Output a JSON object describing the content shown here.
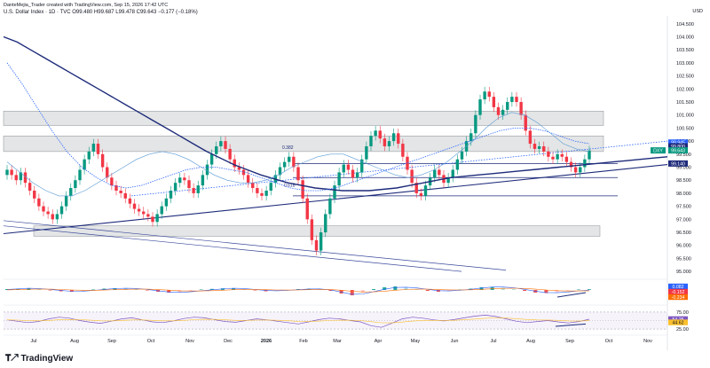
{
  "header": {
    "line1": "DanteMejia_Trader created with TradingView.com, Sep 15, 2026 17:42 UTC",
    "line2": "U.S. Dollar Index · 1D · TVC  O99.480  H99.687  L99.478  C99.643  −0.177 (−0.18%)"
  },
  "chart_data": {
    "type": "line",
    "series_kind": "candlestick",
    "symbol_label": "DXY",
    "y_axis": {
      "ticks": [
        "104.500",
        "104.000",
        "103.500",
        "103.000",
        "102.500",
        "102.000",
        "101.500",
        "101.000",
        "100.500",
        "100.000",
        "99.500",
        "99.000",
        "98.500",
        "98.000",
        "97.500",
        "97.000",
        "96.500",
        "96.000",
        "95.500",
        "95.000"
      ],
      "range": [
        94.8,
        104.8
      ]
    },
    "x_axis": {
      "ticks": [
        "Jul",
        "Aug",
        "Sep",
        "Oct",
        "Nov",
        "Dec",
        "2026",
        "Feb",
        "Mar",
        "Apr",
        "May",
        "Jun",
        "Jul",
        "Aug",
        "Sep",
        "Oct",
        "Nov"
      ]
    },
    "price_labels": [
      {
        "text": "99.945",
        "color": "#2962ff"
      },
      {
        "text": "99.800",
        "color": "#1e2b7a"
      },
      {
        "text": "99.643",
        "color": "#089981"
      },
      {
        "text": "99.140",
        "color": "#1e2b7a"
      }
    ],
    "fib_labels": [
      "0.382",
      "0.618"
    ],
    "zones": [
      {
        "from": 100.6,
        "to": 101.15
      },
      {
        "from": 99.6,
        "to": 100.2
      },
      {
        "from": 96.35,
        "to": 96.75
      }
    ],
    "closes": [
      98.9,
      98.7,
      98.5,
      98.8,
      98.4,
      98.1,
      97.8,
      97.5,
      97.3,
      97.2,
      97.0,
      97.2,
      97.5,
      97.9,
      98.2,
      98.5,
      98.9,
      99.3,
      99.6,
      99.9,
      99.5,
      99.0,
      98.6,
      98.3,
      98.1,
      98.0,
      97.8,
      97.6,
      97.4,
      97.3,
      97.2,
      97.1,
      96.9,
      97.2,
      97.5,
      97.8,
      98.1,
      98.4,
      98.6,
      98.5,
      98.2,
      98.0,
      98.3,
      98.7,
      99.1,
      99.5,
      99.8,
      100.0,
      99.7,
      99.3,
      99.0,
      98.9,
      98.7,
      98.4,
      98.2,
      98.0,
      97.9,
      98.1,
      98.4,
      98.7,
      99.0,
      99.2,
      99.4,
      99.0,
      98.5,
      97.8,
      97.0,
      96.2,
      95.8,
      96.5,
      97.2,
      97.8,
      98.3,
      98.8,
      99.1,
      98.9,
      98.6,
      98.8,
      99.3,
      99.8,
      100.2,
      100.4,
      100.1,
      99.8,
      100.0,
      100.3,
      99.9,
      99.4,
      98.9,
      98.4,
      98.0,
      97.9,
      98.3,
      98.6,
      98.9,
      98.7,
      98.4,
      98.6,
      98.9,
      99.3,
      99.6,
      100.0,
      100.3,
      101.0,
      101.6,
      101.9,
      101.7,
      101.3,
      101.0,
      101.2,
      101.5,
      101.7,
      101.5,
      101.0,
      100.4,
      99.9,
      99.7,
      99.8,
      99.6,
      99.4,
      99.3,
      99.5,
      99.4,
      99.2,
      99.0,
      98.8,
      99.0,
      99.3,
      99.643
    ],
    "ema_long": [
      104.0,
      103.8,
      103.5,
      103.2,
      102.9,
      102.6,
      102.3,
      102.0,
      101.7,
      101.4,
      101.1,
      100.8,
      100.5,
      100.2,
      99.9,
      99.6,
      99.35,
      99.1,
      98.9,
      98.7,
      98.55,
      98.4,
      98.3,
      98.2,
      98.15,
      98.1,
      98.1,
      98.1,
      98.15,
      98.2,
      98.3,
      98.4,
      98.5,
      98.6,
      98.65,
      98.7,
      98.75,
      98.8,
      98.85,
      98.9,
      98.95,
      99.0,
      99.05,
      99.1,
      99.15,
      99.2,
      99.25,
      99.3,
      99.35,
      99.4
    ],
    "sma_mid": [
      103.0,
      102.2,
      101.3,
      100.4,
      99.6,
      99.0,
      98.6,
      98.3,
      98.2,
      98.3,
      98.5,
      98.7,
      98.9,
      99.0,
      99.0,
      98.9,
      98.8,
      98.6,
      98.4,
      98.2,
      98.1,
      98.1,
      98.2,
      98.4,
      98.6,
      98.8,
      99.0,
      99.2,
      99.4,
      99.6,
      99.8,
      100.0,
      100.2,
      100.4,
      100.5,
      100.5,
      100.4,
      100.2,
      100.0,
      99.9
    ],
    "sma_fast": [
      99.2,
      98.8,
      98.4,
      98.1,
      97.9,
      97.9,
      98.1,
      98.4,
      98.7,
      99.0,
      99.3,
      99.5,
      99.6,
      99.5,
      99.3,
      99.0,
      98.7,
      98.5,
      98.4,
      98.4,
      98.5,
      98.7,
      99.0,
      99.2,
      99.4,
      99.5,
      99.5,
      99.3,
      99.1,
      98.9,
      98.7,
      98.6,
      98.7,
      98.9,
      99.2,
      99.6,
      100.0,
      100.5,
      100.9,
      101.1,
      101.0,
      100.7,
      100.3,
      99.9,
      99.7,
      99.6
    ],
    "macd": {
      "labels": [
        "0.082",
        "-0.152",
        "-0.234"
      ],
      "histogram": [
        0.1,
        0.15,
        0.2,
        0.1,
        -0.05,
        -0.15,
        -0.2,
        -0.1,
        0.05,
        0.15,
        0.2,
        0.18,
        0.1,
        -0.05,
        -0.2,
        -0.3,
        -0.25,
        -0.1,
        0.05,
        0.12,
        0.18,
        0.2,
        0.1,
        -0.05,
        -0.15,
        -0.1,
        0.0,
        0.1,
        0.15,
        0.1,
        -0.1,
        -0.4,
        -0.6,
        -0.3,
        0.1,
        0.3,
        0.4,
        0.25,
        0.1,
        -0.1,
        -0.2,
        -0.1,
        0.05,
        0.15,
        0.3,
        0.35,
        0.25,
        0.1,
        -0.1,
        -0.3,
        -0.35,
        -0.25,
        -0.1,
        0.05,
        0.08
      ]
    },
    "rsi": {
      "levels": [
        "75.00",
        "25.00"
      ],
      "labels": [
        "54.25",
        "44.62"
      ],
      "values": [
        52,
        48,
        44,
        47,
        55,
        60,
        57,
        50,
        45,
        42,
        48,
        55,
        58,
        52,
        46,
        44,
        49,
        56,
        60,
        58,
        52,
        47,
        45,
        50,
        55,
        52,
        48,
        44,
        40,
        46,
        53,
        57,
        55,
        50,
        46,
        35,
        30,
        42,
        55,
        60,
        57,
        52,
        49,
        53,
        58,
        63,
        66,
        62,
        55,
        48,
        44,
        47,
        50,
        46,
        43,
        47,
        54
      ]
    }
  },
  "logo": {
    "text": "TradingView"
  }
}
